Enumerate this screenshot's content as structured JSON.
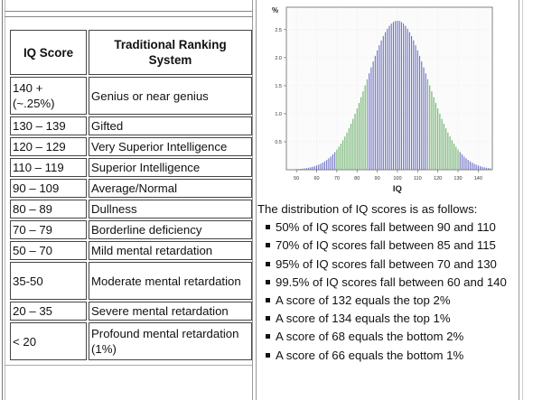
{
  "table": {
    "headers": [
      "IQ Score",
      "Traditional Ranking System"
    ],
    "rows": [
      {
        "score": "140 + (~.25%)",
        "rank": "Genius or near genius"
      },
      {
        "score": "130 – 139",
        "rank": "Gifted"
      },
      {
        "score": "120 – 129",
        "rank": "Very Superior Intelligence"
      },
      {
        "score": "110 – 119",
        "rank": "Superior Intelligence"
      },
      {
        "score": "90 – 109",
        "rank": "Average/Normal"
      },
      {
        "score": "80 – 89",
        "rank": "Dullness"
      },
      {
        "score": "70 – 79",
        "rank": "Borderline deficiency"
      },
      {
        "score": "50 – 70",
        "rank": "Mild mental retardation"
      },
      {
        "score": "35-50",
        "rank": "Moderate mental retardation"
      },
      {
        "score": "20 – 35",
        "rank": "Severe mental retardation"
      },
      {
        "score": "< 20",
        "rank": "Profound mental retardation (1%)"
      }
    ]
  },
  "chart_data": {
    "type": "bar",
    "xlabel": "IQ",
    "ylabel": "%",
    "x_ticks": [
      "50",
      "60",
      "70",
      "80",
      "90",
      "100",
      "110",
      "120",
      "130",
      "140"
    ],
    "y_ticks": [
      "0.5",
      "1.0",
      "1.5",
      "2.0",
      "2.5"
    ],
    "xlim": [
      45,
      147
    ],
    "ylim": [
      0,
      2.9
    ],
    "mean": 100,
    "sd": 15,
    "peak_value": 2.66,
    "colors": {
      "blue": "#6a6fc0",
      "green": "#6aaf6a"
    },
    "green_ranges": [
      [
        70,
        85
      ],
      [
        115,
        130
      ]
    ]
  },
  "distribution": {
    "intro": "The distribution of IQ scores is as follows:",
    "items": [
      "50% of IQ scores fall between 90 and 110",
      "70% of IQ scores fall between 85 and 115",
      "95% of IQ scores fall between 70 and 130",
      "99.5% of IQ scores fall between 60 and 140",
      "A score of 132 equals the top 2%",
      "A score of 134 equals the top 1%",
      "A score of 68 equals the bottom 2%",
      "A score of 66 equals the bottom 1%"
    ]
  }
}
